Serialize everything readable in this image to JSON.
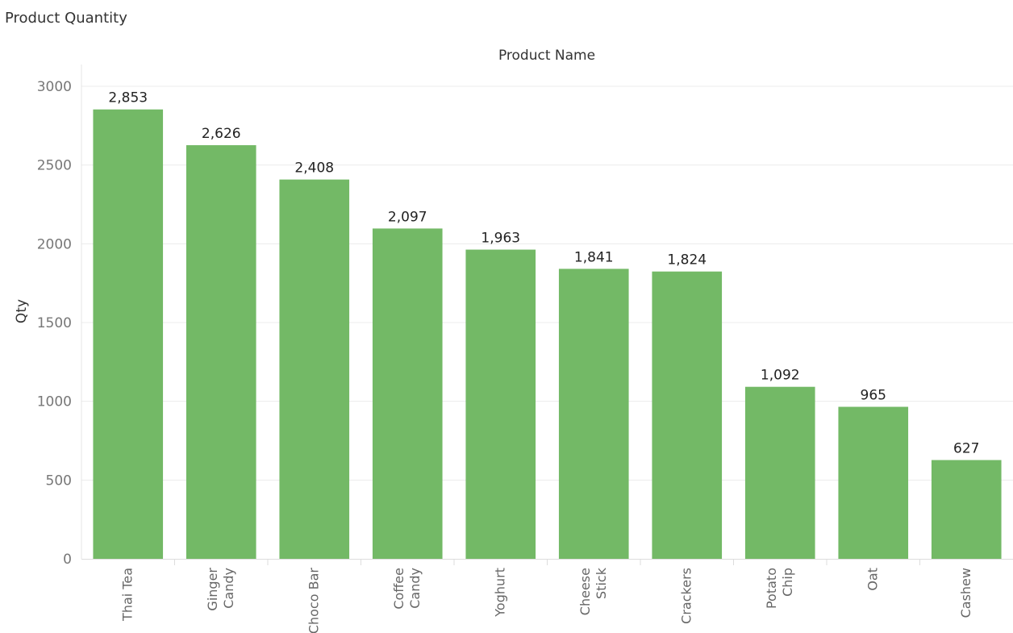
{
  "chart_data": {
    "type": "bar",
    "title": "Product Quantity",
    "xlabel": "Product Name",
    "ylabel": "Qty",
    "categories": [
      [
        "Thai Tea"
      ],
      [
        "Ginger",
        "Candy"
      ],
      [
        "Choco Bar"
      ],
      [
        "Coffee",
        "Candy"
      ],
      [
        "Yoghurt"
      ],
      [
        "Cheese",
        "Stick"
      ],
      [
        "Crackers"
      ],
      [
        "Potato",
        "Chip"
      ],
      [
        "Oat"
      ],
      [
        "Cashew"
      ]
    ],
    "values": [
      2853,
      2626,
      2408,
      2097,
      1963,
      1841,
      1824,
      1092,
      965,
      627
    ],
    "value_labels": [
      "2,853",
      "2,626",
      "2,408",
      "2,097",
      "1,963",
      "1,841",
      "1,824",
      "1,092",
      "965",
      "627"
    ],
    "yticks": [
      0,
      500,
      1000,
      1500,
      2000,
      2500,
      3000
    ],
    "ylim": [
      0,
      3000
    ],
    "grid": true,
    "bar_color": "#73b966",
    "grid_color": "#ececec"
  }
}
